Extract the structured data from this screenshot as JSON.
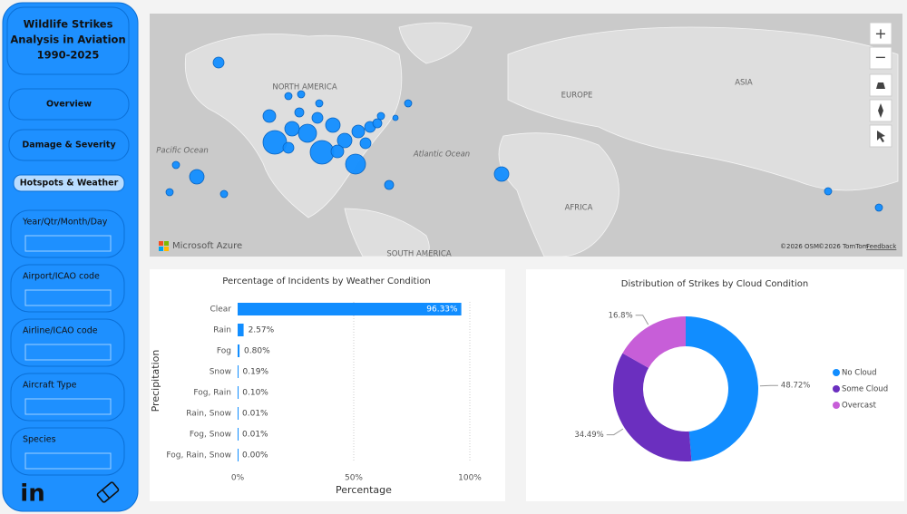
{
  "sidebar": {
    "title_lines": [
      "Wildlife Strikes",
      "Analysis in Aviation",
      "1990-2025"
    ],
    "nav": [
      "Overview",
      "Damage & Severity",
      "Hotspots & Weather"
    ],
    "filters": [
      "Year/Qtr/Month/Day",
      "Airport/ICAO code",
      "Airline/ICAO code",
      "Aircraft Type",
      "Species"
    ]
  },
  "map": {
    "labels": [
      "NORTH AMERICA",
      "EUROPE",
      "ASIA",
      "AFRICA",
      "SOUTH AMERICA",
      "Pacific Ocean",
      "Atlantic Ocean"
    ],
    "brand": "Microsoft Azure",
    "credits": [
      "©2026 OSM",
      "©2026 TomTom"
    ],
    "feedback": "Feedback",
    "zoom": [
      "+",
      "−"
    ]
  },
  "chart_data": [
    {
      "type": "bar",
      "orientation": "horizontal",
      "title": "Percentage of Incidents by Weather Condition",
      "x_label": "Percentage",
      "y_label": "Precipitation",
      "categories": [
        "Clear",
        "Rain",
        "Fog",
        "Snow",
        "Fog, Rain",
        "Rain, Snow",
        "Fog, Snow",
        "Fog, Rain, Snow"
      ],
      "values": [
        96.33,
        2.57,
        0.8,
        0.19,
        0.1,
        0.01,
        0.01,
        0.0
      ],
      "value_labels": [
        "96.33%",
        "2.57%",
        "0.80%",
        "0.19%",
        "0.10%",
        "0.01%",
        "0.01%",
        "0.00%"
      ],
      "color": "#118dff",
      "xlim": [
        0,
        100
      ],
      "xticks": [
        {
          "value": 0,
          "label": "0%"
        },
        {
          "value": 50,
          "label": "50%"
        },
        {
          "value": 100,
          "label": "100%"
        }
      ],
      "grid": true
    },
    {
      "type": "donut",
      "title": "Distribution of Strikes by Cloud Condition",
      "categories": [
        "No Cloud",
        "Some Cloud",
        "Overcast"
      ],
      "values": [
        48.72,
        34.49,
        16.8
      ],
      "value_labels": [
        "48.72%",
        "34.49%",
        "16.8%"
      ],
      "colors": [
        "#118dff",
        "#6b2fbf",
        "#c75ed8"
      ],
      "legend": "right"
    }
  ]
}
